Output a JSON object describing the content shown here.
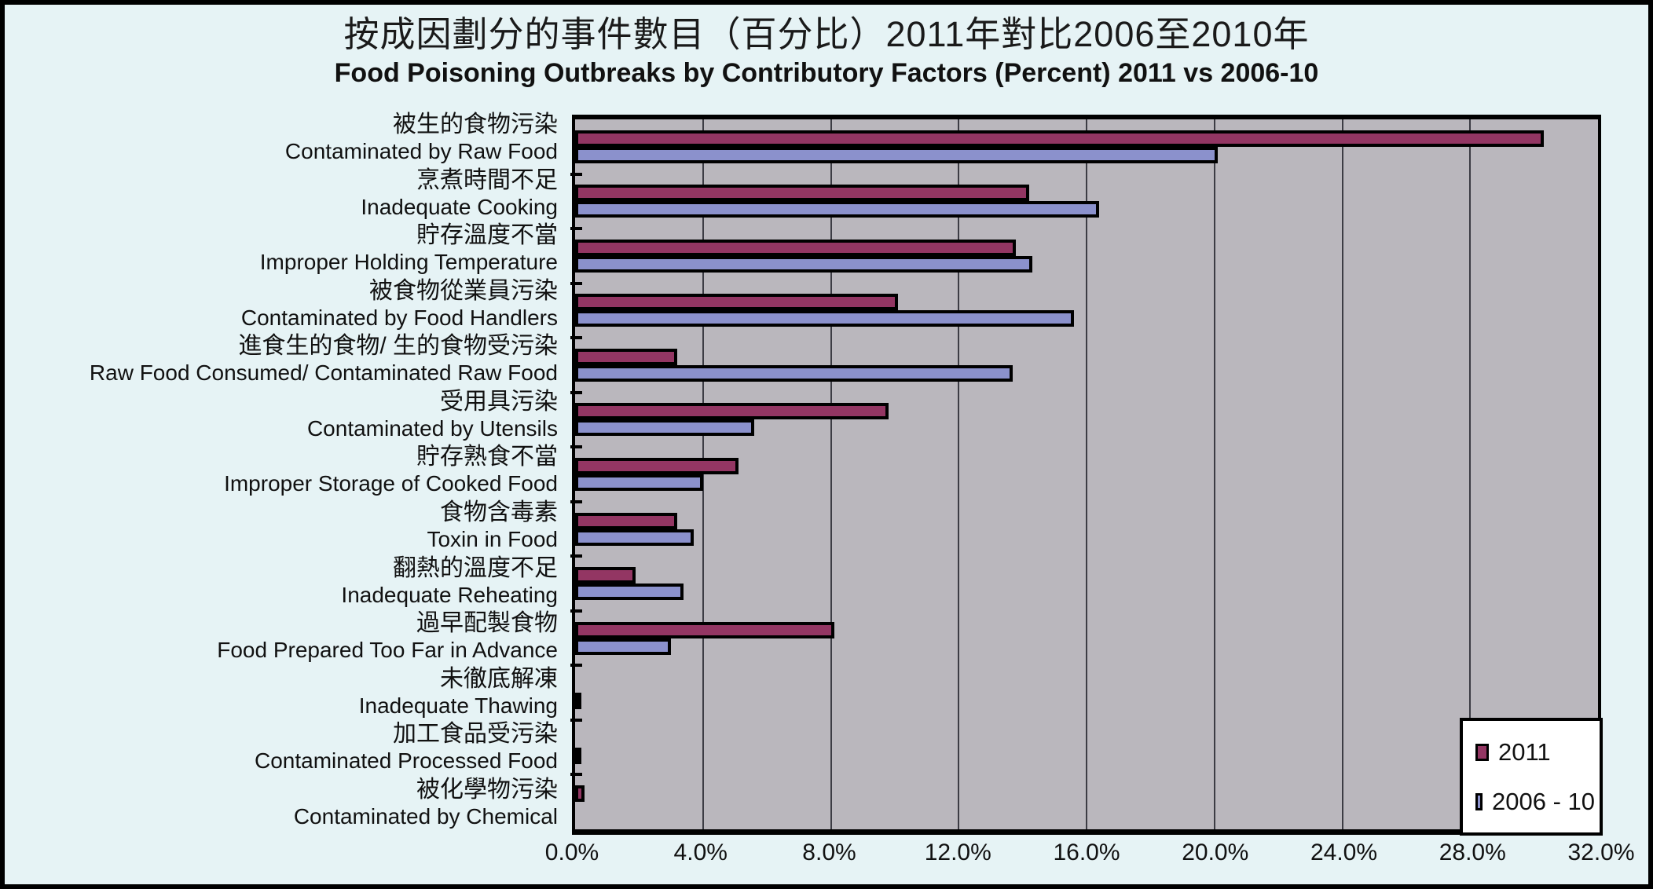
{
  "chart_data": {
    "type": "bar",
    "orientation": "horizontal",
    "title_zh": "按成因劃分的事件數目（百分比）2011年對比2006至2010年",
    "title_en": "Food Poisoning Outbreaks by Contributory Factors (Percent) 2011 vs 2006-10",
    "categories": [
      {
        "zh": "被生的食物污染",
        "en": "Contaminated by Raw Food"
      },
      {
        "zh": "烹煮時間不足",
        "en": "Inadequate Cooking"
      },
      {
        "zh": "貯存溫度不當",
        "en": "Improper Holding Temperature"
      },
      {
        "zh": "被食物從業員污染",
        "en": "Contaminated by Food Handlers"
      },
      {
        "zh": "進食生的食物/ 生的食物受污染",
        "en": "Raw Food Consumed/ Contaminated Raw Food"
      },
      {
        "zh": "受用具污染",
        "en": "Contaminated by Utensils"
      },
      {
        "zh": "貯存熟食不當",
        "en": "Improper Storage of Cooked Food"
      },
      {
        "zh": "食物含毒素",
        "en": "Toxin in Food"
      },
      {
        "zh": "翻熱的溫度不足",
        "en": "Inadequate Reheating"
      },
      {
        "zh": "過早配製食物",
        "en": "Food Prepared Too Far in Advance"
      },
      {
        "zh": "未徹底解凍",
        "en": "Inadequate Thawing"
      },
      {
        "zh": "加工食品受污染",
        "en": "Contaminated Processed Food"
      },
      {
        "zh": "被化學物污染",
        "en": "Contaminated by Chemical"
      }
    ],
    "series": [
      {
        "name": "2011",
        "color": "#933663",
        "values": [
          30.3,
          14.2,
          13.8,
          10.1,
          3.2,
          9.8,
          5.1,
          3.2,
          1.9,
          8.1,
          0,
          0,
          0.3
        ]
      },
      {
        "name": "2006 - 10",
        "color": "#8B91CC",
        "values": [
          20.1,
          16.4,
          14.3,
          15.6,
          13.7,
          5.6,
          4.0,
          3.7,
          3.4,
          3.0,
          0.2,
          0.2,
          0
        ]
      }
    ],
    "x_axis": {
      "min": 0,
      "max": 32,
      "tick_step": 4,
      "tick_labels": [
        "0.0%",
        "4.0%",
        "8.0%",
        "12.0%",
        "16.0%",
        "20.0%",
        "24.0%",
        "28.0%",
        "32.0%"
      ]
    },
    "legend": {
      "position": "bottom-right",
      "entries": [
        "2011",
        "2006 - 10"
      ]
    },
    "grid": true,
    "colors": {
      "page_bg": "#E6F3F5",
      "plot_bg": "#BAB7BD",
      "grid_line": "#3C3C44",
      "bar_border": "#000000",
      "frame_border": "#000000",
      "series_2011": "#933663",
      "series_2006_10": "#8B91CC"
    }
  }
}
